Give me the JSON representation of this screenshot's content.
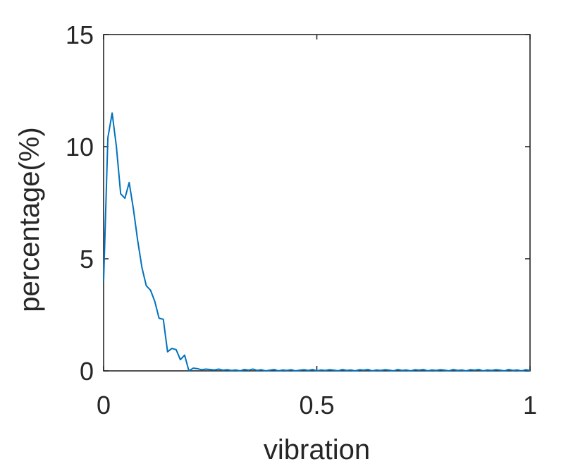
{
  "chart_data": {
    "type": "line",
    "title": "",
    "xlabel": "vibration",
    "ylabel": "percentage(%)",
    "xlim": [
      0,
      1
    ],
    "ylim": [
      0,
      15
    ],
    "xticks": [
      0,
      0.5,
      1
    ],
    "xtick_labels": [
      "0",
      "0.5",
      "1"
    ],
    "yticks": [
      0,
      5,
      10,
      15
    ],
    "ytick_labels": [
      "0",
      "5",
      "10",
      "15"
    ],
    "grid": false,
    "box": true,
    "series": [
      {
        "color": "#0072bd",
        "x": [
          0,
          0.01,
          0.02,
          0.03,
          0.04,
          0.05,
          0.06,
          0.07,
          0.08,
          0.09,
          0.1,
          0.11,
          0.12,
          0.13,
          0.14,
          0.15,
          0.16,
          0.17,
          0.18,
          0.19,
          0.2,
          0.21,
          0.22,
          0.23,
          0.24,
          0.25,
          0.26,
          0.27,
          0.28,
          0.29,
          0.3,
          0.31,
          0.32,
          0.33,
          0.34,
          0.35,
          0.36,
          0.37,
          0.38,
          0.39,
          0.4,
          0.41,
          0.42,
          0.43,
          0.44,
          0.45,
          0.46,
          0.47,
          0.48,
          0.49,
          0.5,
          0.51,
          0.52,
          0.53,
          0.54,
          0.55,
          0.56,
          0.57,
          0.58,
          0.59,
          0.6,
          0.61,
          0.62,
          0.63,
          0.64,
          0.65,
          0.66,
          0.67,
          0.68,
          0.69,
          0.7,
          0.71,
          0.72,
          0.73,
          0.74,
          0.75,
          0.76,
          0.77,
          0.78,
          0.79,
          0.8,
          0.81,
          0.82,
          0.83,
          0.84,
          0.85,
          0.86,
          0.87,
          0.88,
          0.89,
          0.9,
          0.91,
          0.92,
          0.93,
          0.94,
          0.95,
          0.96,
          0.97,
          0.98,
          0.99,
          1.0
        ],
        "y": [
          4.0,
          10.4,
          11.5,
          10.0,
          7.9,
          7.7,
          8.4,
          7.2,
          5.8,
          4.6,
          3.8,
          3.6,
          3.1,
          2.35,
          2.3,
          0.85,
          1.0,
          0.95,
          0.5,
          0.7,
          0.0,
          0.12,
          0.1,
          0.05,
          0.08,
          0.06,
          0.04,
          0.08,
          0.03,
          0.05,
          0.02,
          0.04,
          0.0,
          0.06,
          0.03,
          0.08,
          0.02,
          0.05,
          0.0,
          0.03,
          0.06,
          0.0,
          0.04,
          0.02,
          0.05,
          0.0,
          0.03,
          0.05,
          0.02,
          0.06,
          0.0,
          0.04,
          0.02,
          0.05,
          0.03,
          0.0,
          0.06,
          0.02,
          0.04,
          0.0,
          0.05,
          0.03,
          0.06,
          0.0,
          0.04,
          0.02,
          0.05,
          0.03,
          0.0,
          0.06,
          0.02,
          0.04,
          0.0,
          0.05,
          0.03,
          0.06,
          0.0,
          0.04,
          0.02,
          0.05,
          0.03,
          0.0,
          0.06,
          0.02,
          0.04,
          0.0,
          0.05,
          0.03,
          0.06,
          0.0,
          0.04,
          0.02,
          0.05,
          0.03,
          0.0,
          0.06,
          0.02,
          0.04,
          0.0,
          0.05,
          0.02
        ]
      }
    ]
  }
}
